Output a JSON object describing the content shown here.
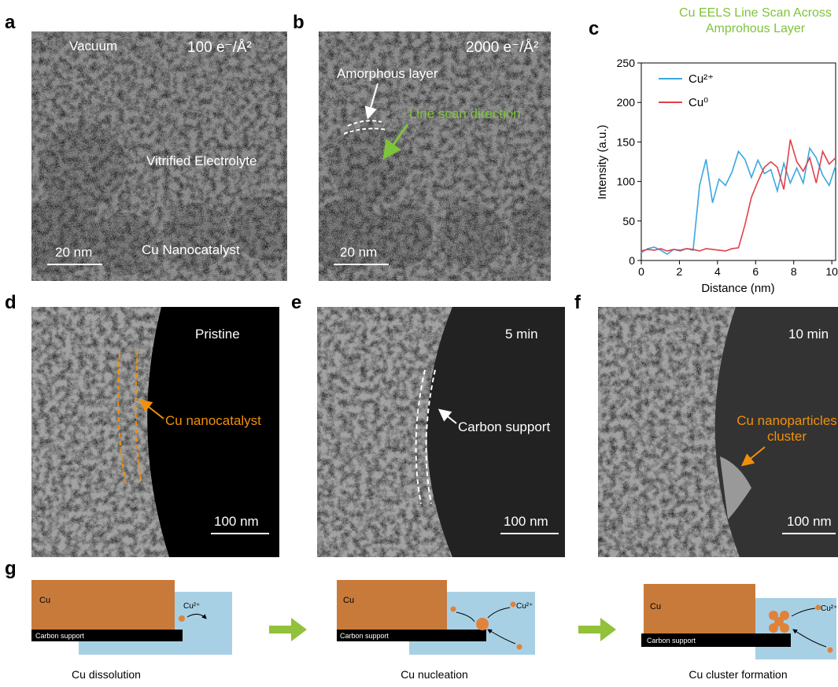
{
  "panels": {
    "a": {
      "label": "a",
      "vacuum": "Vacuum",
      "dose": "100 e⁻/Å²",
      "electrolyte": "Vitrified Electrolyte",
      "catalyst": "Cu Nanocatalyst",
      "scale": "20 nm"
    },
    "b": {
      "label": "b",
      "dose": "2000 e⁻/Å²",
      "layer": "Amorphous layer",
      "scan": "Line scan direction",
      "scale": "20 nm"
    },
    "c": {
      "label": "c"
    },
    "d": {
      "label": "d",
      "state": "Pristine",
      "note": "Cu nanocatalyst",
      "scale": "100 nm"
    },
    "e": {
      "label": "e",
      "state": "5 min",
      "note": "Carbon support",
      "scale": "100 nm"
    },
    "f": {
      "label": "f",
      "state": "10 min",
      "note": [
        "Cu nanoparticles",
        "cluster"
      ],
      "scale": "100 nm"
    },
    "g": {
      "label": "g",
      "steps": [
        {
          "cu": "Cu",
          "ion": "Cu²⁺",
          "support": "Carbon support",
          "caption": "Cu dissolution"
        },
        {
          "cu": "Cu",
          "ion": "Cu²⁺",
          "support": "Carbon support",
          "caption": "Cu nucleation"
        },
        {
          "cu": "Cu",
          "ion": "Cu²⁺",
          "support": "Carbon support",
          "caption": "Cu cluster formation"
        }
      ]
    }
  },
  "chart_data": {
    "type": "line",
    "title": [
      "Cu EELS Line Scan Across",
      "Amprohous Layer"
    ],
    "x_label": "Distance (nm)",
    "y_label": "Intensity (a.u.)",
    "x": [
      0,
      0.34,
      0.68,
      1.02,
      1.36,
      1.7,
      2.04,
      2.38,
      2.72,
      3.06,
      3.4,
      3.74,
      4.08,
      4.42,
      4.76,
      5.1,
      5.44,
      5.78,
      6.12,
      6.46,
      6.8,
      7.14,
      7.48,
      7.82,
      8.16,
      8.5,
      8.84,
      9.18,
      9.52,
      9.86,
      10.2
    ],
    "series": [
      {
        "name": "Cu²⁺",
        "color": "#3aa7e0",
        "values": [
          10,
          15,
          17,
          13,
          8,
          14,
          12,
          15,
          13,
          95,
          128,
          73,
          103,
          95,
          112,
          138,
          128,
          105,
          127,
          110,
          115,
          88,
          123,
          98,
          117,
          98,
          142,
          130,
          108,
          95,
          120
        ]
      },
      {
        "name": "Cu⁰",
        "color": "#e0404a",
        "values": [
          12,
          14,
          13,
          15,
          12,
          14,
          13,
          15,
          14,
          12,
          15,
          14,
          13,
          12,
          15,
          16,
          45,
          80,
          100,
          118,
          125,
          118,
          90,
          153,
          125,
          113,
          130,
          98,
          138,
          122,
          130
        ]
      }
    ],
    "xlim": [
      0,
      10.2
    ],
    "xticks": [
      0,
      2,
      4,
      6,
      8,
      10
    ],
    "ylim": [
      0,
      250
    ],
    "yticks": [
      0,
      50,
      100,
      150,
      200,
      250
    ],
    "legend": "upper-left"
  }
}
